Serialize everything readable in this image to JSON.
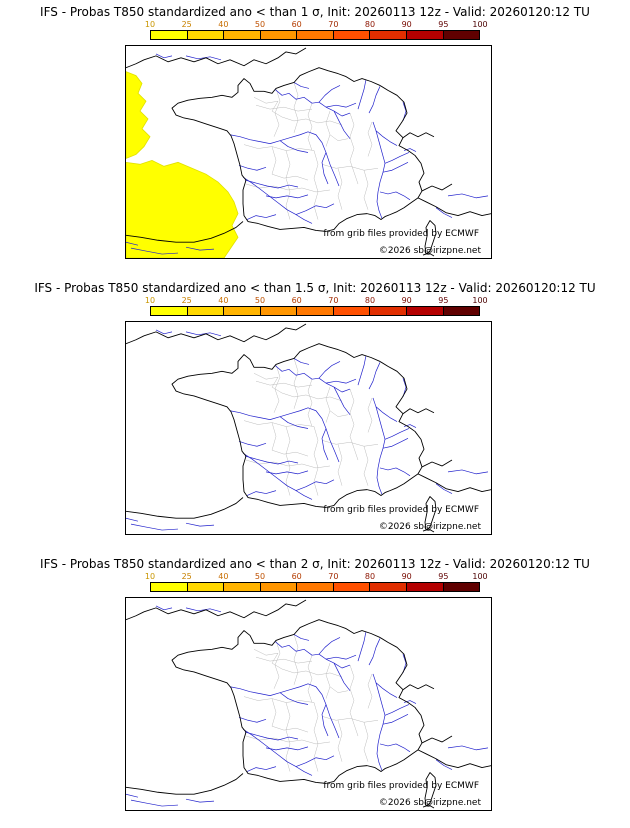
{
  "page": {
    "background": "#ffffff"
  },
  "scale": {
    "ticks": [
      "10",
      "25",
      "40",
      "50",
      "60",
      "70",
      "80",
      "90",
      "95",
      "100"
    ],
    "tick_colors": [
      "#c89600",
      "#c88200",
      "#c86e00",
      "#be5000",
      "#b43c00",
      "#a02800",
      "#8c1400",
      "#780a00",
      "#600000",
      "#4a0000"
    ],
    "segments": [
      "#ffff00",
      "#ffd800",
      "#ffb400",
      "#ff9600",
      "#ff7800",
      "#ff5000",
      "#e12e00",
      "#b40000",
      "#600000"
    ]
  },
  "map": {
    "region": "France",
    "border_color": "#000000",
    "river_color": "#2222cc",
    "department_color": "#bbbbbb",
    "shading_color": "#ffff00"
  },
  "panels": [
    {
      "title": "IFS - Probas T850  standardized ano < than 1 σ, Init: 20260113 12z - Valid: 20260120:12 TU",
      "credit": "from grib files provided by ECMWF",
      "copyright": "©2026 sb@irizpne.net",
      "shading": "yellow-patches-west-atlantic-and-northern-spain"
    },
    {
      "title": "IFS - Probas T850  standardized ano < than 1.5 σ, Init: 20260113 12z - Valid: 20260120:12 TU",
      "credit": "from grib files provided by ECMWF",
      "copyright": "©2026 sb@irizpne.net",
      "shading": "none"
    },
    {
      "title": "IFS - Probas T850  standardized ano < than 2 σ, Init: 20260113 12z - Valid: 20260120:12 TU",
      "credit": "from grib files provided by ECMWF",
      "copyright": "©2026 sb@irizpne.net",
      "shading": "none"
    }
  ]
}
